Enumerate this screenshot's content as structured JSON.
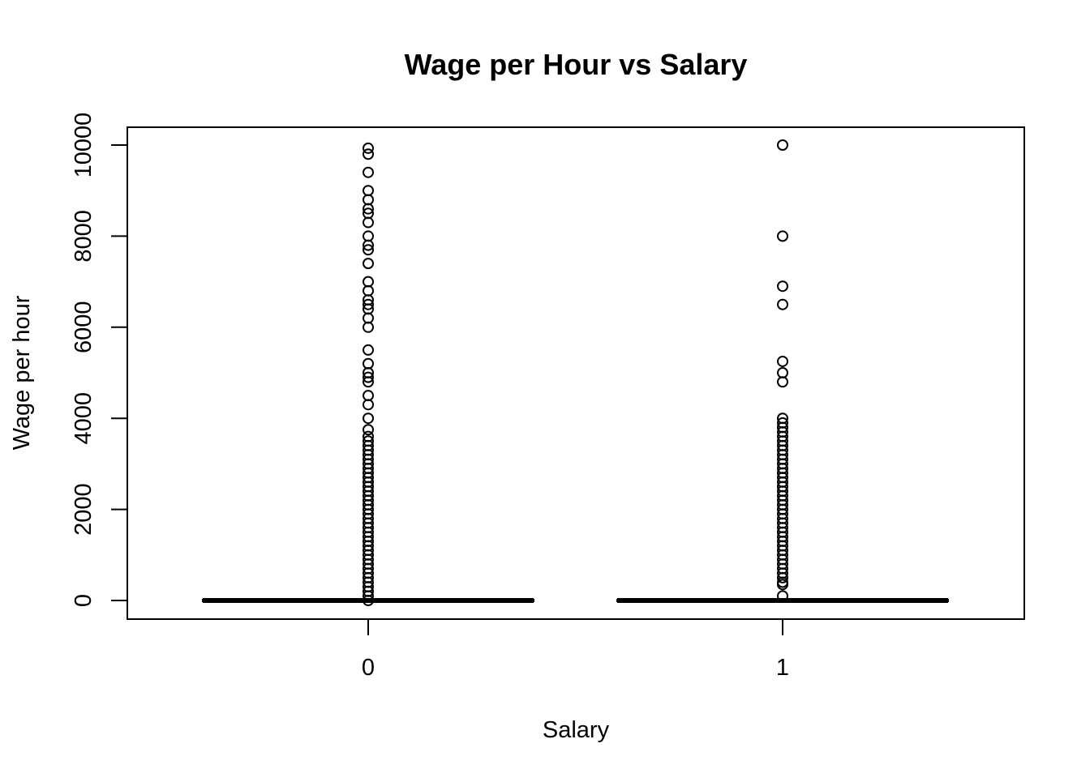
{
  "chart_data": {
    "type": "boxplot",
    "title": "Wage per Hour vs Salary",
    "xlabel": "Salary",
    "ylabel": "Wage per hour",
    "categories": [
      "0",
      "1"
    ],
    "yticks": [
      0,
      2000,
      4000,
      6000,
      8000,
      10000
    ],
    "ytick_labels": [
      "0",
      "2000",
      "4000",
      "6000",
      "8000",
      "10000"
    ],
    "ylim": [
      -400,
      10400
    ],
    "grid": false,
    "legend": "none",
    "boxes": [
      {
        "category": "0",
        "min": 0,
        "q1": 0,
        "median": 0,
        "q3": 0,
        "max": 0,
        "outliers": [
          9930,
          9800,
          9400,
          9000,
          8800,
          8600,
          8500,
          8300,
          8000,
          7800,
          7700,
          7400,
          7000,
          6800,
          6600,
          6500,
          6400,
          6200,
          6000,
          5500,
          5200,
          5000,
          4900,
          4800,
          4500,
          4300,
          4000,
          3750,
          3600,
          3500,
          3400,
          3300,
          3200,
          3100,
          3000,
          2900,
          2800,
          2700,
          2600,
          2500,
          2400,
          2300,
          2200,
          2100,
          2000,
          1900,
          1800,
          1700,
          1600,
          1500,
          1400,
          1300,
          1200,
          1100,
          1000,
          900,
          800,
          700,
          600,
          500,
          400,
          300,
          200,
          100,
          0
        ]
      },
      {
        "category": "1",
        "min": 0,
        "q1": 0,
        "median": 0,
        "q3": 0,
        "max": 0,
        "outliers": [
          10000,
          8000,
          6900,
          6500,
          5250,
          5000,
          4800,
          4000,
          3900,
          3800,
          3700,
          3600,
          3500,
          3400,
          3300,
          3200,
          3100,
          3000,
          2900,
          2800,
          2700,
          2600,
          2500,
          2400,
          2300,
          2200,
          2100,
          2000,
          1900,
          1800,
          1700,
          1600,
          1500,
          1400,
          1300,
          1200,
          1100,
          1000,
          900,
          800,
          700,
          600,
          500,
          400,
          350,
          100
        ]
      }
    ]
  }
}
